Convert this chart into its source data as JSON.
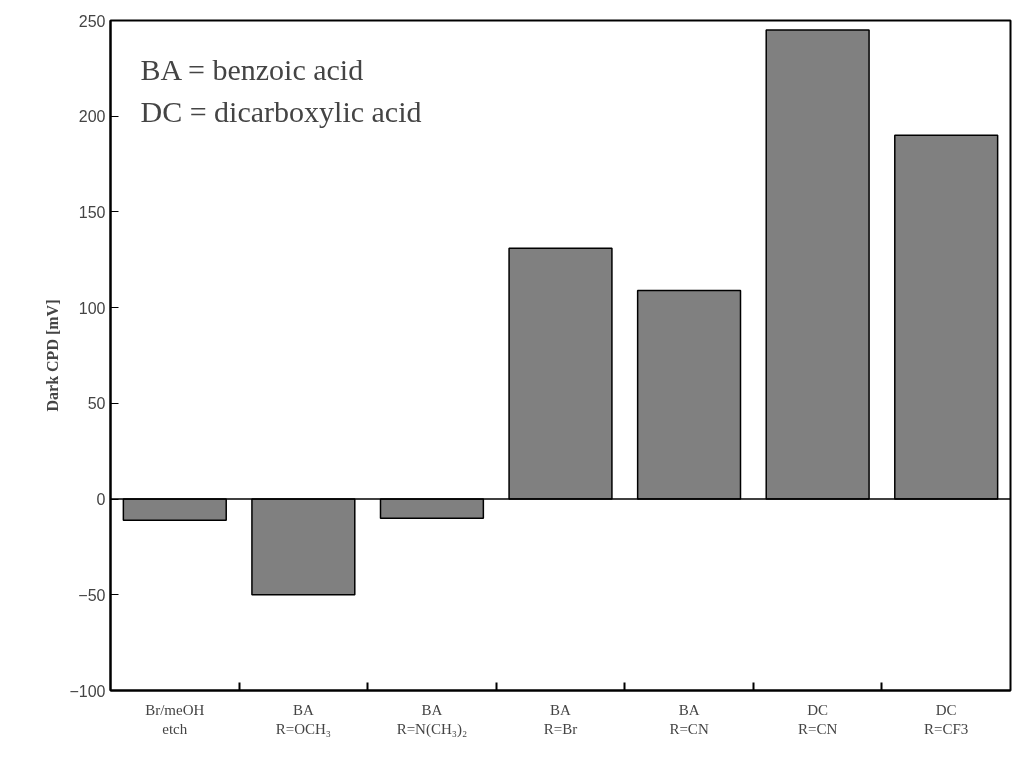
{
  "chart_data": {
    "type": "bar",
    "ylabel": "Dark CPD [mV]",
    "categories": [
      "Br/meOH\netch",
      "BA\nR=OCH₃",
      "BA\nR=N(CH₃)₂",
      "BA\nR=Br",
      "BA\nR=CN",
      "DC\nR=CN",
      "DC\nR=CF3"
    ],
    "values": [
      -11,
      -50,
      -10,
      131,
      109,
      245,
      190
    ],
    "color": "#808080",
    "ylim": [
      -100,
      250
    ],
    "yticks": [
      -100,
      -50,
      0,
      50,
      100,
      150,
      200,
      250
    ],
    "annotations": [
      "BA = benzoic acid",
      "DC = dicarboxylic acid"
    ]
  }
}
